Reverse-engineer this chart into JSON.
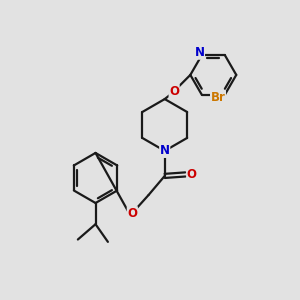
{
  "bg_color": "#e2e2e2",
  "bond_color": "#1a1a1a",
  "bond_width": 1.6,
  "atom_colors": {
    "N": "#0000cc",
    "O": "#cc0000",
    "Br": "#cc7700",
    "C": "#1a1a1a"
  },
  "font_size": 8.5,
  "fig_size": [
    3.0,
    3.0
  ],
  "dpi": 100
}
